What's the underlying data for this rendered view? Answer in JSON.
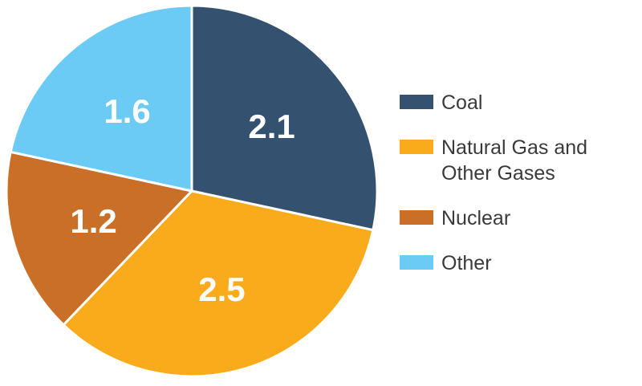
{
  "chart_data": {
    "type": "pie",
    "title": "",
    "slices": [
      {
        "label": "Coal",
        "value": 2.1,
        "value_label": "2.1",
        "color": "#34526f"
      },
      {
        "label": "Natural Gas and\nOther Gases",
        "value": 2.5,
        "value_label": "2.5",
        "color": "#f9ab1b"
      },
      {
        "label": "Nuclear",
        "value": 1.2,
        "value_label": "1.2",
        "color": "#c96f27"
      },
      {
        "label": "Other",
        "value": 1.6,
        "value_label": "1.6",
        "color": "#6ccbf4"
      }
    ],
    "start_angle": "12 o'clock",
    "direction": "clockwise",
    "legend_position": "right"
  }
}
